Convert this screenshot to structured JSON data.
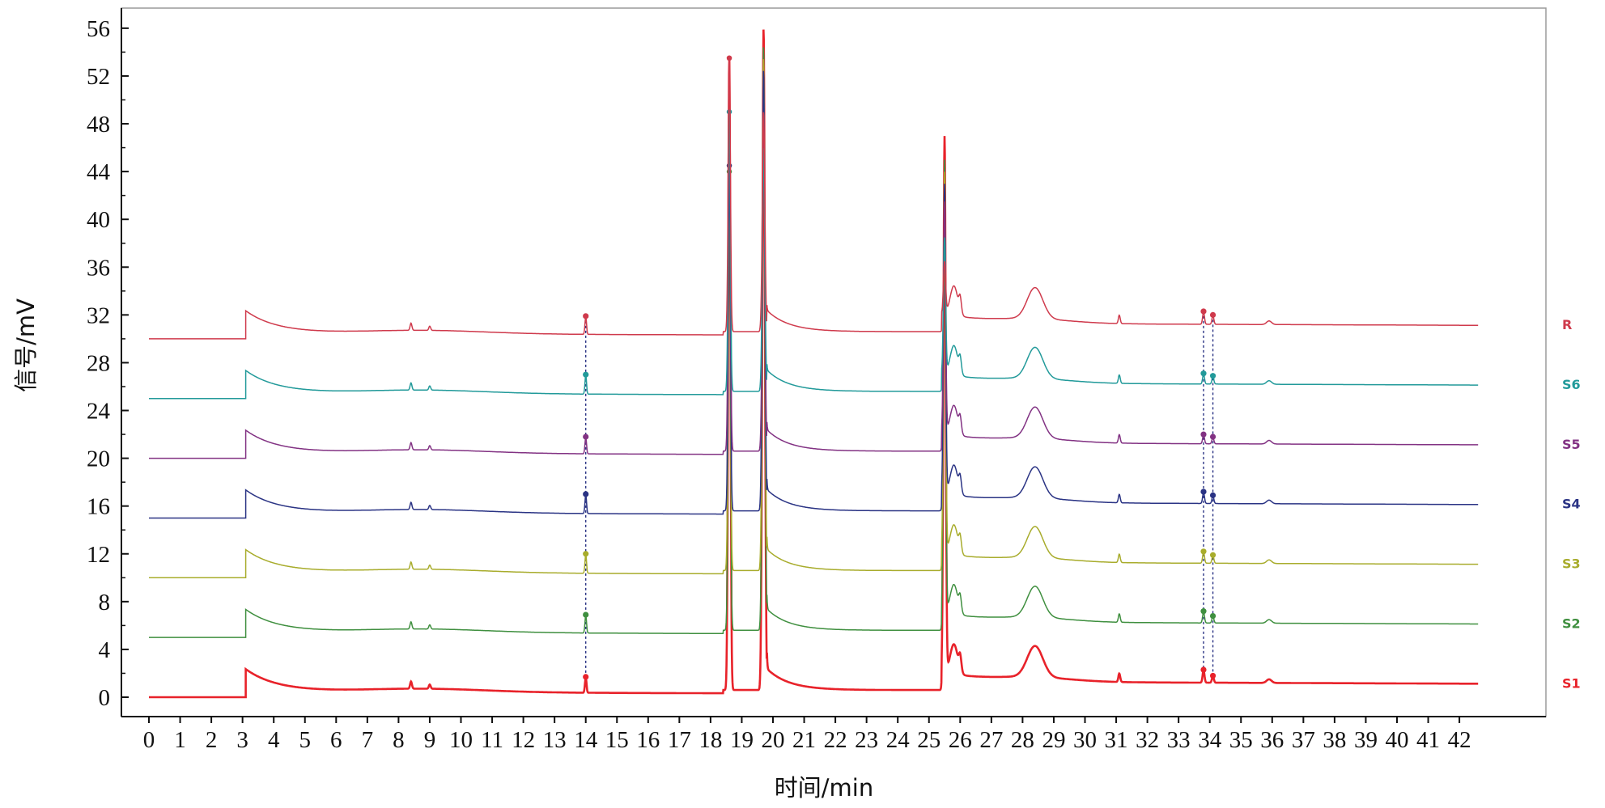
{
  "chart_data": {
    "type": "line",
    "title": "",
    "xlabel": "时间/min",
    "ylabel": "信号/mV",
    "xlim": [
      0,
      43
    ],
    "ylim": [
      -2,
      57
    ],
    "xticks": [
      0,
      1,
      2,
      3,
      4,
      5,
      6,
      7,
      8,
      9,
      10,
      11,
      12,
      13,
      14,
      15,
      16,
      17,
      18,
      19,
      20,
      21,
      22,
      23,
      24,
      25,
      26,
      27,
      28,
      29,
      30,
      31,
      32,
      33,
      34,
      35,
      36,
      37,
      38,
      39,
      40,
      41,
      42
    ],
    "yticks": [
      0,
      4,
      8,
      12,
      16,
      20,
      24,
      28,
      32,
      36,
      40,
      44,
      48,
      52,
      56
    ],
    "grid": false,
    "legend": "labels at right end of each trace",
    "marker_times": [
      14.0,
      18.6,
      19.7,
      25.5,
      33.8,
      34.1
    ],
    "series": [
      {
        "name": "S1",
        "color": "#e8222a",
        "offset": 0,
        "peak_heights": [
          1.7,
          53.5,
          56.0,
          46.0,
          2.3,
          1.8
        ]
      },
      {
        "name": "S2",
        "color": "#3f8f3f",
        "offset": 5,
        "peak_heights": [
          6.9,
          44.0,
          54.5,
          44.0,
          7.2,
          6.8
        ]
      },
      {
        "name": "S3",
        "color": "#a8ac2c",
        "offset": 10,
        "peak_heights": [
          12.0,
          44.5,
          53.5,
          43.0,
          12.2,
          11.9
        ]
      },
      {
        "name": "S4",
        "color": "#2a3384",
        "offset": 15,
        "peak_heights": [
          17.0,
          44.5,
          52.5,
          42.0,
          17.2,
          16.9
        ]
      },
      {
        "name": "S5",
        "color": "#823283",
        "offset": 20,
        "peak_heights": [
          21.8,
          49.0,
          47.5,
          40.5,
          22.0,
          21.8
        ]
      },
      {
        "name": "S6",
        "color": "#229a9a",
        "offset": 25,
        "peak_heights": [
          27.0,
          49.0,
          46.0,
          37.5,
          27.1,
          26.9
        ]
      },
      {
        "name": "R",
        "color": "#cf3a4c",
        "offset": 30,
        "peak_heights": [
          31.9,
          53.5,
          49.0,
          35.5,
          32.3,
          32.0
        ]
      }
    ]
  }
}
